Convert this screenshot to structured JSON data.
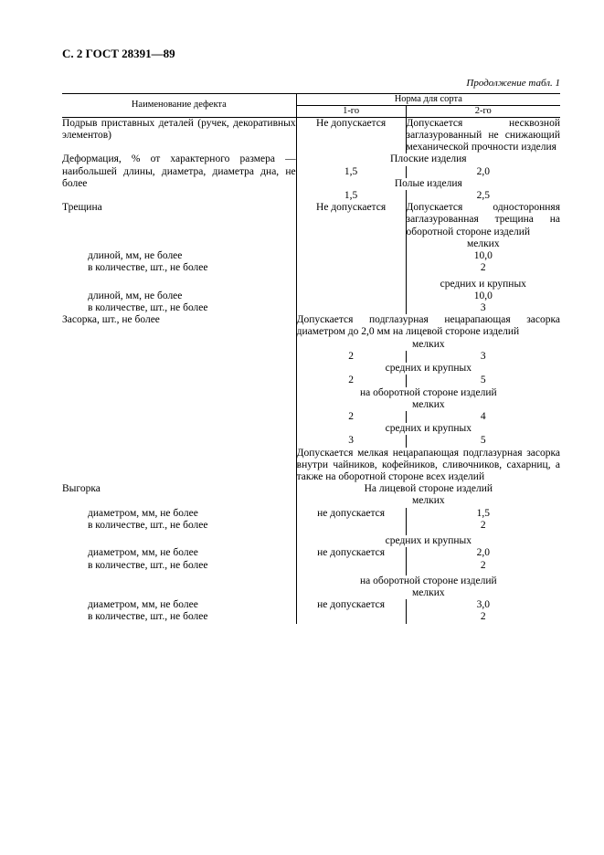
{
  "text_color": "#000000",
  "background_color": "#ffffff",
  "font_family": "Times New Roman",
  "page_header": "С. 2 ГОСТ 28391—89",
  "table_caption": "Продолжение табл. 1",
  "headers": {
    "defect_name": "Наименование дефекта",
    "norm": "Норма для сорта",
    "grade1": "1-го",
    "grade2": "2-го"
  },
  "labels": {
    "not_allowed": "Не допускается",
    "not_allowed_lc": "не допускается",
    "flat_items": "Плоские изделия",
    "hollow_items": "Полые изделия",
    "small": "мелких",
    "med_large": "средних и крупных",
    "face_side": "на лицевой стороне изделий",
    "back_side": "на оборотной стороне изделий",
    "face_side_cap": "На лицевой стороне изделий"
  },
  "rows": {
    "r1": {
      "name": "Подрыв приставных деталей (ручек, деко­ративных элементов)",
      "g2": "Допускается несквозной заглазурованный не снижаю­щий механической прочности изделия"
    },
    "r2": {
      "name": "Деформация, % от характерного размера — наибольшей длины, диаметра, диаметра дна, не более",
      "flat": {
        "g1": "1,5",
        "g2": "2,0"
      },
      "hollow": {
        "g1": "1,5",
        "g2": "2,5"
      }
    },
    "r3": {
      "name": "Трещина",
      "g2": "Допускается односторон­няя заглазурованная трещина на оборотной стороне из­делий",
      "small": {
        "len": "10,0",
        "qty": "2"
      },
      "med": {
        "len": "10,0",
        "qty": "3"
      },
      "len_label": "длиной, мм, не более",
      "qty_label": "в количестве, шт., не более"
    },
    "r4": {
      "name": "Засорка, шт., не более",
      "note1": "Допускается подглазурная нецарапающая засорка диаметром до 2,0 мм на лицевой стороне изделий",
      "face_small": {
        "g1": "2",
        "g2": "3"
      },
      "face_med": {
        "g1": "2",
        "g2": "5"
      },
      "back_small": {
        "g1": "2",
        "g2": "4"
      },
      "back_med": {
        "g1": "3",
        "g2": "5"
      },
      "note2": "Допускается мелкая нецарапающая подглазурная за­сорка внутри чайников, кофейников, сливочников, са­харниц, а также на оборотной стороне всех изделий"
    },
    "r5": {
      "name": "Выгорка",
      "dia_label": "диаметром, мм, не более",
      "qty_label": "в количестве, шт., не более",
      "face_small": {
        "g2d": "1,5",
        "g2q": "2"
      },
      "face_med": {
        "g2d": "2,0",
        "g2q": "2"
      },
      "back_small": {
        "g2d": "3,0",
        "g2q": "2"
      }
    }
  }
}
